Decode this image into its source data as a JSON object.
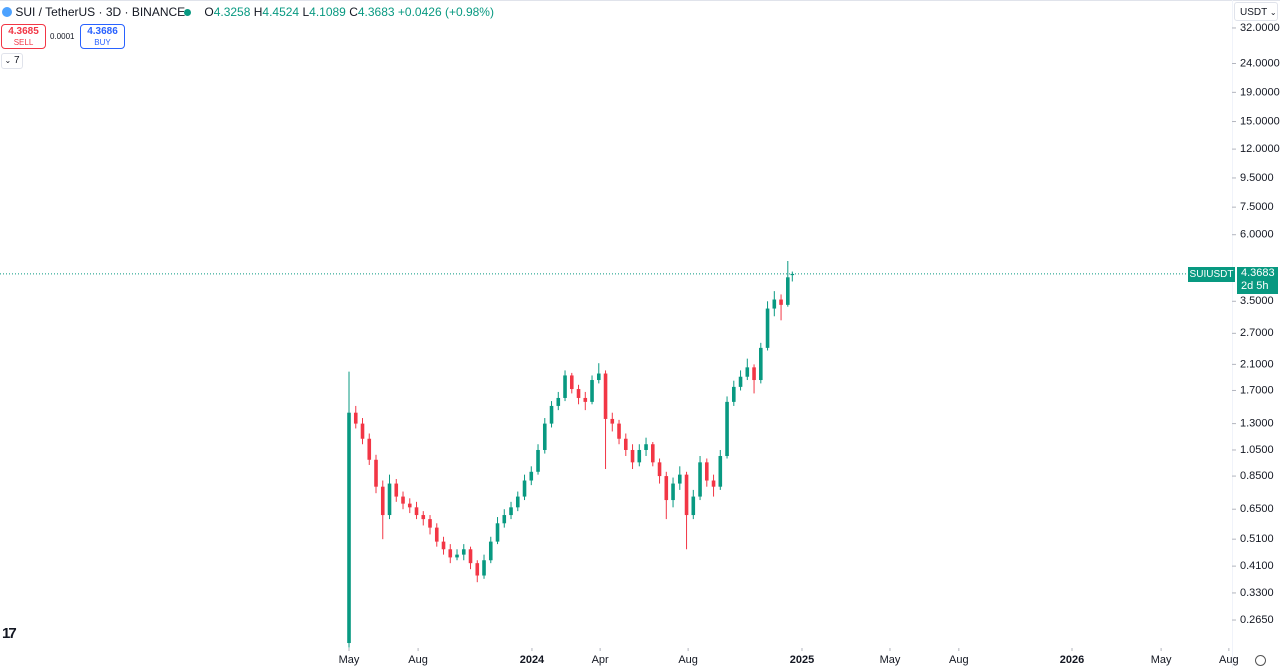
{
  "chart_data": {
    "type": "candlestick",
    "title": "SUI / TetherUS · 3D · BINANCE",
    "x": [
      0,
      3,
      6,
      9,
      12,
      15,
      18,
      21,
      24,
      27,
      30,
      33,
      36,
      39,
      42,
      45,
      48,
      51,
      54,
      57,
      60,
      63,
      66,
      69,
      72,
      75,
      78,
      81,
      84,
      87,
      90,
      93,
      96,
      99,
      102,
      105,
      108,
      111,
      114,
      117,
      120,
      123,
      126,
      129,
      132,
      135,
      138,
      141,
      144,
      147,
      150,
      153,
      156,
      159,
      162,
      165,
      168,
      171,
      174,
      177,
      180,
      183,
      186,
      189,
      192,
      195,
      197
    ],
    "open": [
      0.22,
      1.42,
      1.3,
      1.15,
      0.97,
      0.78,
      0.62,
      0.8,
      0.72,
      0.68,
      0.66,
      0.62,
      0.6,
      0.56,
      0.5,
      0.47,
      0.44,
      0.45,
      0.47,
      0.42,
      0.38,
      0.43,
      0.5,
      0.58,
      0.62,
      0.66,
      0.72,
      0.82,
      0.88,
      1.05,
      1.3,
      1.5,
      1.6,
      1.92,
      1.72,
      1.6,
      1.55,
      1.85,
      1.95,
      1.35,
      1.3,
      1.15,
      1.05,
      0.95,
      1.05,
      1.1,
      0.95,
      0.85,
      0.7,
      0.8,
      0.86,
      0.62,
      0.72,
      0.95,
      0.82,
      0.78,
      1.0,
      1.55,
      1.75,
      1.9,
      2.05,
      1.85,
      2.4,
      3.3,
      3.55,
      3.4,
      4.3258
    ],
    "high": [
      1.98,
      1.5,
      1.36,
      1.2,
      1.01,
      0.82,
      0.86,
      0.83,
      0.75,
      0.71,
      0.69,
      0.64,
      0.62,
      0.58,
      0.52,
      0.49,
      0.47,
      0.49,
      0.48,
      0.43,
      0.45,
      0.52,
      0.61,
      0.65,
      0.69,
      0.75,
      0.86,
      0.92,
      1.1,
      1.36,
      1.56,
      1.68,
      2.0,
      1.96,
      1.78,
      1.68,
      1.92,
      2.12,
      2.0,
      1.42,
      1.34,
      1.2,
      1.1,
      1.1,
      1.16,
      1.12,
      0.98,
      0.88,
      0.84,
      0.92,
      0.88,
      0.76,
      1.0,
      0.98,
      0.86,
      1.05,
      1.62,
      1.84,
      2.0,
      2.2,
      2.1,
      2.5,
      3.5,
      3.8,
      3.7,
      4.85,
      4.4524
    ],
    "low": [
      0.212,
      1.25,
      1.1,
      0.93,
      0.74,
      0.51,
      0.6,
      0.69,
      0.65,
      0.63,
      0.6,
      0.57,
      0.53,
      0.48,
      0.45,
      0.42,
      0.43,
      0.43,
      0.4,
      0.36,
      0.37,
      0.42,
      0.49,
      0.56,
      0.6,
      0.64,
      0.7,
      0.79,
      0.86,
      1.02,
      1.26,
      1.45,
      1.56,
      1.66,
      1.52,
      1.45,
      1.52,
      1.8,
      0.9,
      1.22,
      1.1,
      1.0,
      0.9,
      0.92,
      1.0,
      0.92,
      0.8,
      0.6,
      0.66,
      0.76,
      0.47,
      0.6,
      0.7,
      0.78,
      0.72,
      0.76,
      0.98,
      1.5,
      1.7,
      1.85,
      1.66,
      1.8,
      2.35,
      3.1,
      3.0,
      3.35,
      4.1089
    ],
    "close": [
      1.42,
      1.3,
      1.15,
      0.97,
      0.78,
      0.62,
      0.8,
      0.72,
      0.68,
      0.66,
      0.62,
      0.6,
      0.56,
      0.5,
      0.47,
      0.44,
      0.45,
      0.47,
      0.42,
      0.38,
      0.43,
      0.5,
      0.58,
      0.62,
      0.66,
      0.72,
      0.82,
      0.88,
      1.05,
      1.3,
      1.5,
      1.6,
      1.92,
      1.72,
      1.6,
      1.55,
      1.85,
      1.95,
      1.35,
      1.3,
      1.15,
      1.05,
      0.95,
      1.05,
      1.1,
      0.95,
      0.85,
      0.7,
      0.8,
      0.86,
      0.62,
      0.72,
      0.95,
      0.82,
      0.78,
      1.0,
      1.55,
      1.75,
      1.9,
      2.05,
      1.85,
      2.4,
      3.3,
      3.55,
      3.4,
      4.25,
      4.3683
    ],
    "up_color": "#089981",
    "down_color": "#f23645",
    "log_scale": true,
    "ylim": [
      0.2113,
      40.13
    ],
    "yticks": [
      {
        "value": 32,
        "label": "32.0000"
      },
      {
        "value": 24,
        "label": "24.0000"
      },
      {
        "value": 19,
        "label": "19.0000"
      },
      {
        "value": 15,
        "label": "15.0000"
      },
      {
        "value": 12,
        "label": "12.0000"
      },
      {
        "value": 9.5,
        "label": "9.5000"
      },
      {
        "value": 7.5,
        "label": "7.5000"
      },
      {
        "value": 6,
        "label": "6.0000"
      },
      {
        "value": 3.5,
        "label": "3.5000"
      },
      {
        "value": 2.7,
        "label": "2.7000"
      },
      {
        "value": 2.1,
        "label": "2.1000"
      },
      {
        "value": 1.7,
        "label": "1.7000"
      },
      {
        "value": 1.3,
        "label": "1.3000"
      },
      {
        "value": 1.05,
        "label": "1.0500"
      },
      {
        "value": 0.85,
        "label": "0.8500"
      },
      {
        "value": 0.65,
        "label": "0.6500"
      },
      {
        "value": 0.51,
        "label": "0.5100"
      },
      {
        "value": 0.41,
        "label": "0.4100"
      },
      {
        "value": 0.33,
        "label": "0.3300"
      },
      {
        "value": 0.265,
        "label": "0.2650"
      }
    ],
    "xlim": [
      -155.1,
      392.4
    ],
    "xticks": [
      {
        "value": 0,
        "label": "May"
      },
      {
        "value": 30.7,
        "label": "Aug"
      },
      {
        "value": 81.3,
        "label": "2024"
      },
      {
        "value": 111.6,
        "label": "Apr"
      },
      {
        "value": 150.7,
        "label": "Aug"
      },
      {
        "value": 201.3,
        "label": "2025"
      },
      {
        "value": 240.4,
        "label": "May"
      },
      {
        "value": 271,
        "label": "Aug"
      },
      {
        "value": 321.3,
        "label": "2026"
      },
      {
        "value": 360.9,
        "label": "May"
      },
      {
        "value": 391,
        "label": "Aug"
      }
    ],
    "grid": false
  },
  "ui": {
    "ohlc_letters": [
      "O",
      "H",
      "L",
      "C"
    ],
    "change": "+0.0426 (+0.98%)",
    "sell_price": "4.3685",
    "sell_label": "SELL",
    "spread": "0.0001",
    "buy_price": "4.3686",
    "buy_label": "BUY",
    "indicators_count": "7",
    "currency": "USDT",
    "symbol_tag": "SUIUSDT",
    "countdown": "2d 5h"
  }
}
